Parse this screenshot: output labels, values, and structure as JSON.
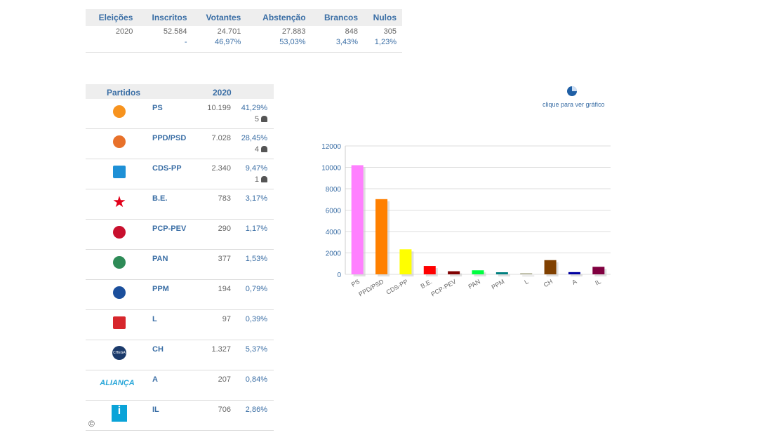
{
  "summary": {
    "headers": [
      "Eleições",
      "Inscritos",
      "Votantes",
      "Abstenção",
      "Brancos",
      "Nulos"
    ],
    "values": [
      "2020",
      "52.584",
      "24.701",
      "27.883",
      "848",
      "305"
    ],
    "percents": [
      "",
      "-",
      "46,97%",
      "53,03%",
      "3,43%",
      "1,23%"
    ]
  },
  "parties": {
    "header": "Partidos",
    "year": "2020",
    "rows": [
      {
        "name": "PS",
        "votes": "10.199",
        "pct": "41,29%",
        "mandates": "5",
        "color": "#f7931e"
      },
      {
        "name": "PPD/PSD",
        "votes": "7.028",
        "pct": "28,45%",
        "mandates": "4",
        "color": "#e8712a"
      },
      {
        "name": "CDS-PP",
        "votes": "2.340",
        "pct": "9,47%",
        "mandates": "1",
        "color": "#1e90d6"
      },
      {
        "name": "B.E.",
        "votes": "783",
        "pct": "3,17%",
        "color": "#e2001a"
      },
      {
        "name": "PCP-PEV",
        "votes": "290",
        "pct": "1,17%",
        "color": "#c8102e"
      },
      {
        "name": "PAN",
        "votes": "377",
        "pct": "1,53%",
        "color": "#2e8b57"
      },
      {
        "name": "PPM",
        "votes": "194",
        "pct": "0,79%",
        "color": "#1b4f9c"
      },
      {
        "name": "L",
        "votes": "97",
        "pct": "0,39%",
        "color": "#d7262c"
      },
      {
        "name": "CH",
        "votes": "1.327",
        "pct": "5,37%",
        "color": "#1b3a6b"
      },
      {
        "name": "A",
        "votes": "207",
        "pct": "0,84%",
        "color": "#2aa7d9"
      },
      {
        "name": "IL",
        "votes": "706",
        "pct": "2,86%",
        "color": "#0aa3d8"
      }
    ]
  },
  "logo_texts": {
    "A": "ALIANÇA",
    "CH": "CHEGA"
  },
  "copyright": "©",
  "graph_link": "clique para ver gráfico",
  "chart_data": {
    "type": "bar",
    "categories": [
      "PS",
      "PPD/PSD",
      "CDS-PP",
      "B.E.",
      "PCP-PEV",
      "PAN",
      "PPM",
      "L",
      "CH",
      "A",
      "IL"
    ],
    "values": [
      10199,
      7028,
      2340,
      783,
      290,
      377,
      194,
      97,
      1327,
      207,
      706
    ],
    "colors": [
      "#ff80ff",
      "#ff8000",
      "#ffff00",
      "#ff0000",
      "#800000",
      "#00ff40",
      "#008080",
      "#a0a080",
      "#804000",
      "#0000a0",
      "#800040"
    ],
    "yticks": [
      0,
      2000,
      4000,
      6000,
      8000,
      10000,
      12000
    ],
    "ylim": [
      0,
      12000
    ],
    "grid": true
  }
}
